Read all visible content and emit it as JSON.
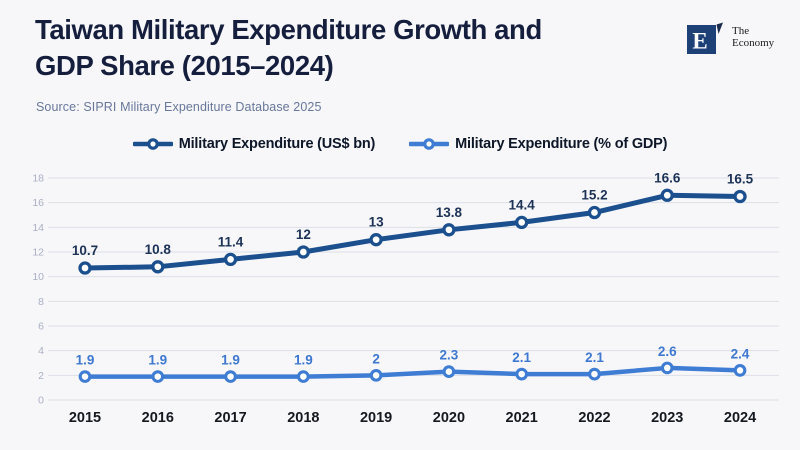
{
  "header": {
    "title_line1": "Taiwan Military Expenditure Growth and",
    "title_line2": "GDP Share (2015–2024)",
    "source": "Source: SIPRI Military Expenditure Database 2025",
    "brand": {
      "letter": "E",
      "line1": "The",
      "line2": "Economy"
    }
  },
  "legend": {
    "items": [
      {
        "label": "Military Expenditure (US$ bn)"
      },
      {
        "label": "Military Expenditure (% of GDP)"
      }
    ]
  },
  "colors": {
    "background": "#f7f7fa",
    "title": "#151f3d",
    "source_text": "#68779a",
    "grid_line": "#dcdfe8",
    "y_tick_label": "#a9b0c2",
    "x_tick_label": "#15191f",
    "legend_text": "#0d1728",
    "logo_navy": "#1d4077",
    "logo_tick": "#1b2b4d",
    "marker_fill": "#ffffff"
  },
  "chart_data": {
    "type": "line",
    "title": "Taiwan Military Expenditure Growth and GDP Share (2015–2024)",
    "categories": [
      "2015",
      "2016",
      "2017",
      "2018",
      "2019",
      "2020",
      "2021",
      "2022",
      "2023",
      "2024"
    ],
    "series": [
      {
        "name": "Military Expenditure (US$ bn)",
        "values": [
          10.7,
          10.8,
          11.4,
          12,
          13,
          13.8,
          14.4,
          15.2,
          16.6,
          16.5
        ],
        "color": "#1b4f8e",
        "label_color": "#1d3356"
      },
      {
        "name": "Military Expenditure (% of GDP)",
        "values": [
          1.9,
          1.9,
          1.9,
          1.9,
          2,
          2.3,
          2.1,
          2.1,
          2.6,
          2.4
        ],
        "color": "#3f7cd3",
        "label_color": "#3e78d0"
      }
    ],
    "xlabel": "",
    "ylabel": "",
    "ylim": [
      0,
      18
    ],
    "y_ticks": [
      0,
      2,
      4,
      6,
      8,
      10,
      12,
      14,
      16,
      18
    ],
    "grid": "horizontal",
    "legend_position": "top",
    "point_labels": true
  }
}
